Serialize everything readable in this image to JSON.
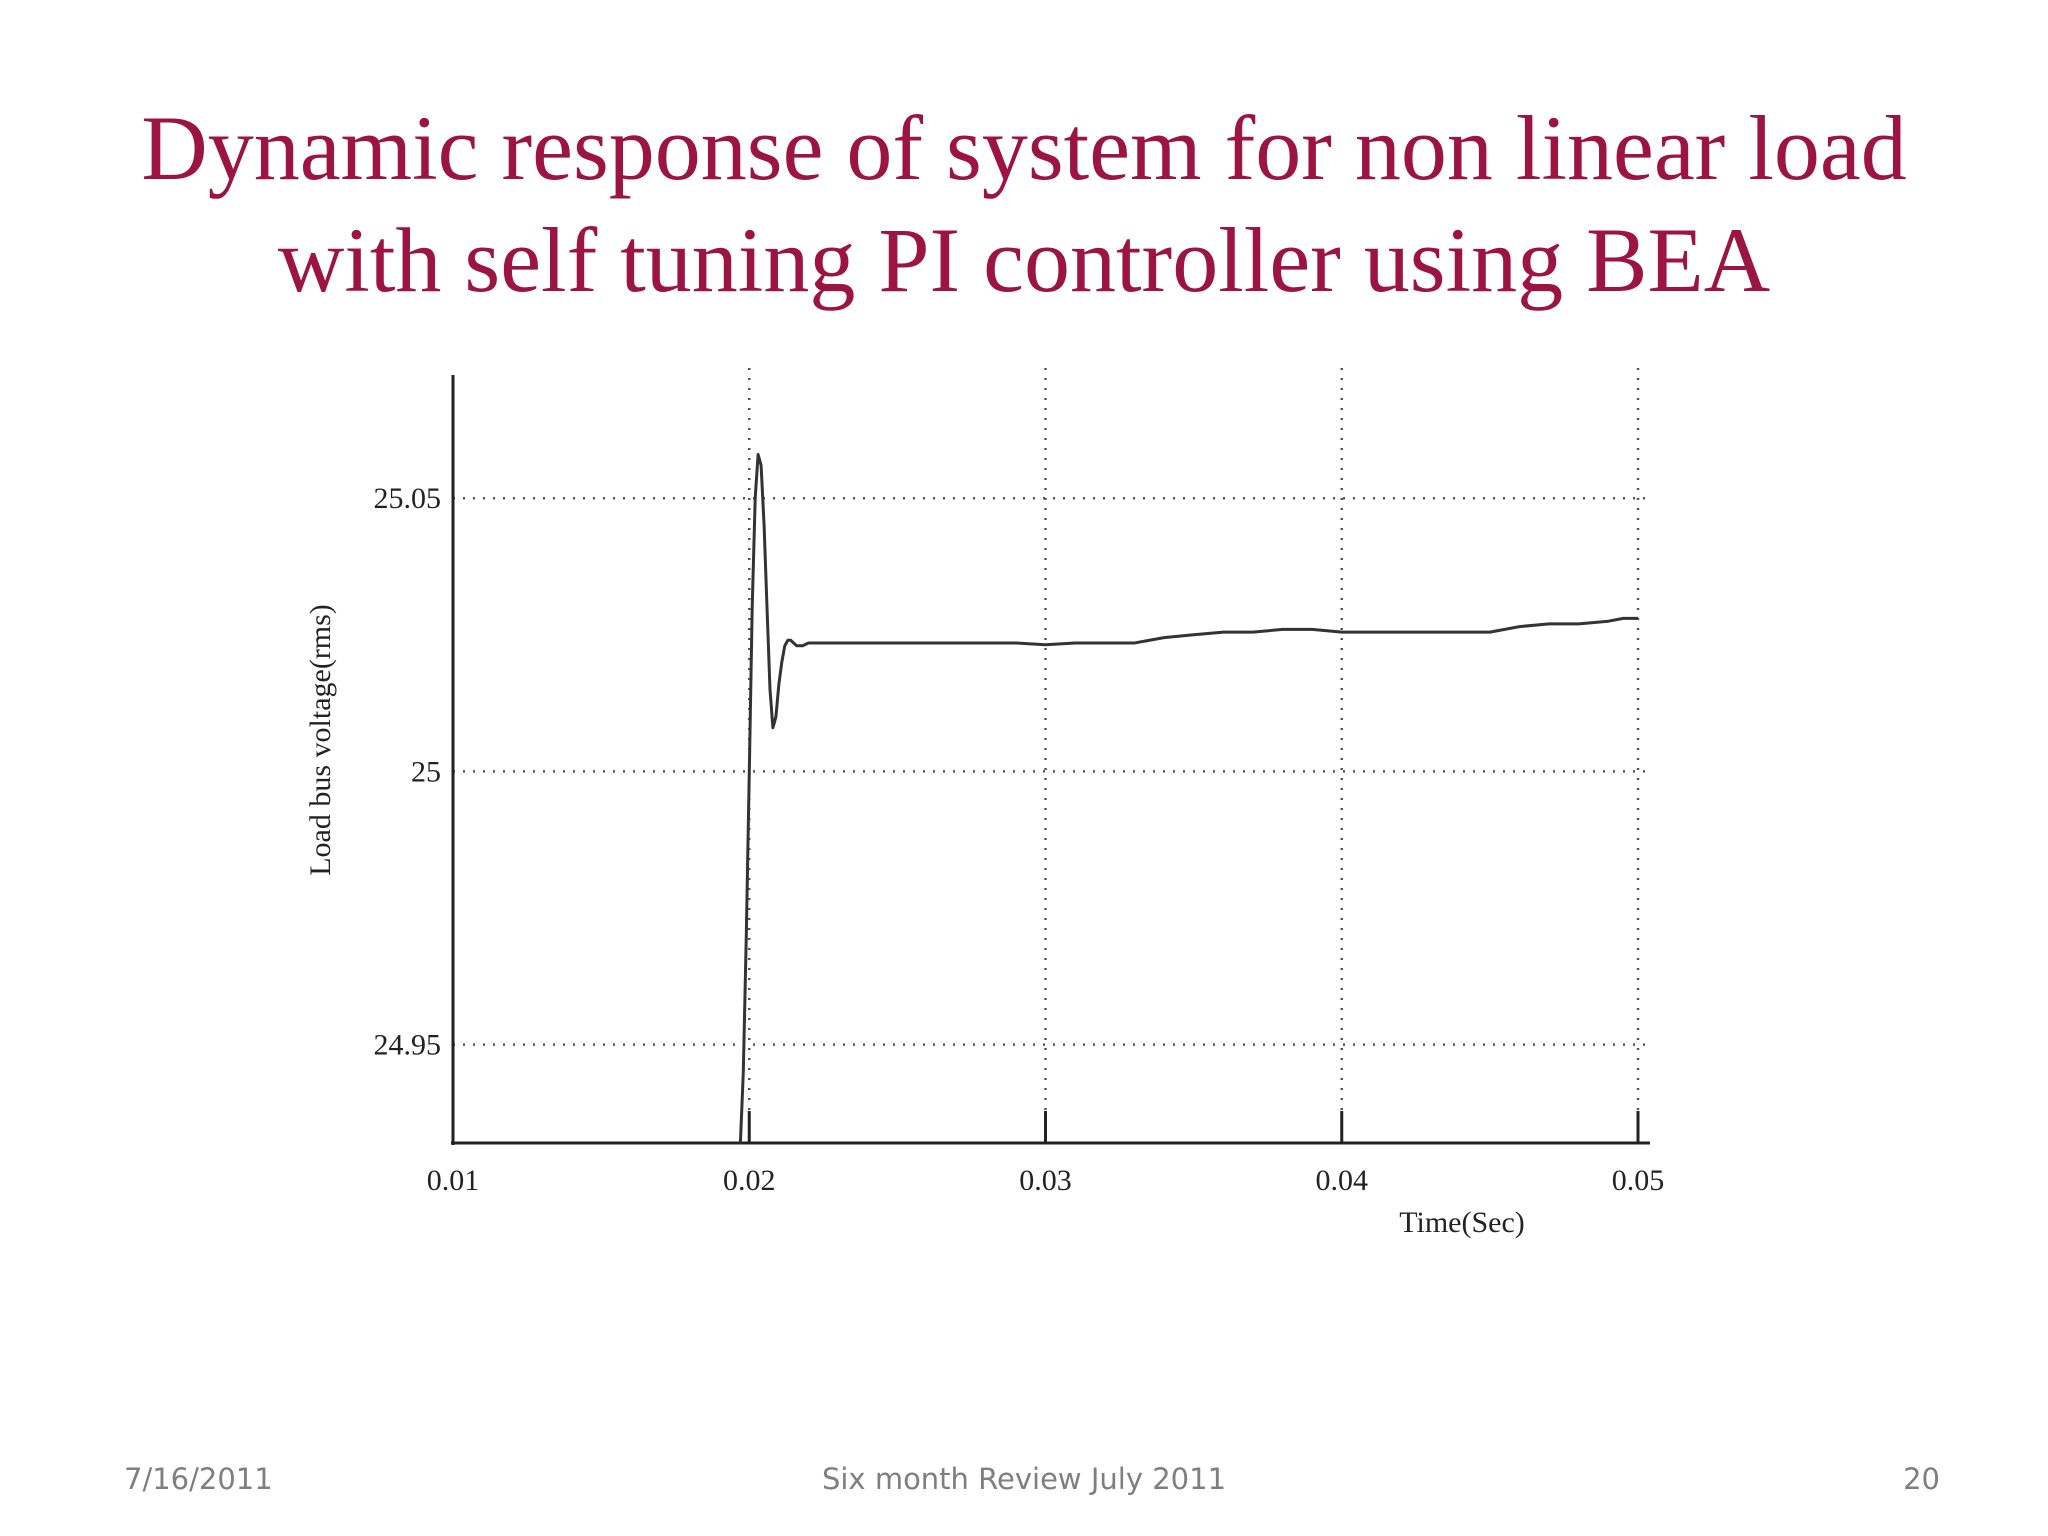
{
  "slide": {
    "title_line1": "Dynamic response of system for non linear load",
    "title_line2": "with self tuning PI controller using BEA",
    "title_color": "#9b1442"
  },
  "footer": {
    "date": "7/16/2011",
    "center": "Six month Review July 2011",
    "page": "20"
  },
  "chart_data": {
    "type": "line",
    "xlabel": "Time(Sec)",
    "ylabel": "Load bus voltage(rms)",
    "xlim": [
      0.01,
      0.05
    ],
    "ylim": [
      24.932,
      25.072
    ],
    "x_ticks": [
      0.01,
      0.02,
      0.03,
      0.04,
      0.05
    ],
    "x_tick_labels": [
      "0.01",
      "0.02",
      "0.03",
      "0.04",
      "0.05"
    ],
    "y_ticks": [
      24.95,
      25,
      25.05
    ],
    "y_tick_labels": [
      "24.95",
      "25",
      "25.05"
    ],
    "grid": true,
    "series": [
      {
        "x": [
          0.0197,
          0.0198,
          0.0199,
          0.02,
          0.0201,
          0.0202,
          0.0203,
          0.0204,
          0.0205,
          0.0206,
          0.0207,
          0.0208,
          0.0209,
          0.021,
          0.0211,
          0.0212,
          0.0213,
          0.0214,
          0.0216,
          0.0218,
          0.022,
          0.0222,
          0.0225,
          0.023,
          0.024,
          0.025,
          0.026,
          0.027,
          0.028,
          0.029,
          0.03,
          0.031,
          0.032,
          0.033,
          0.034,
          0.035,
          0.036,
          0.037,
          0.038,
          0.039,
          0.04,
          0.041,
          0.042,
          0.043,
          0.044,
          0.045,
          0.046,
          0.047,
          0.048,
          0.049,
          0.0495,
          0.05
        ],
        "y": [
          24.932,
          24.945,
          24.97,
          25.0,
          25.03,
          25.05,
          25.058,
          25.056,
          25.045,
          25.03,
          25.015,
          25.008,
          25.01,
          25.016,
          25.02,
          25.023,
          25.024,
          25.024,
          25.023,
          25.023,
          25.0235,
          25.0235,
          25.0235,
          25.0235,
          25.0235,
          25.0235,
          25.0235,
          25.0235,
          25.0235,
          25.0235,
          25.0232,
          25.0235,
          25.0235,
          25.0235,
          25.0245,
          25.025,
          25.0255,
          25.0255,
          25.026,
          25.026,
          25.0255,
          25.0255,
          25.0255,
          25.0255,
          25.0255,
          25.0255,
          25.0265,
          25.027,
          25.027,
          25.0275,
          25.028,
          25.028
        ]
      }
    ],
    "line_color": "#333333"
  }
}
